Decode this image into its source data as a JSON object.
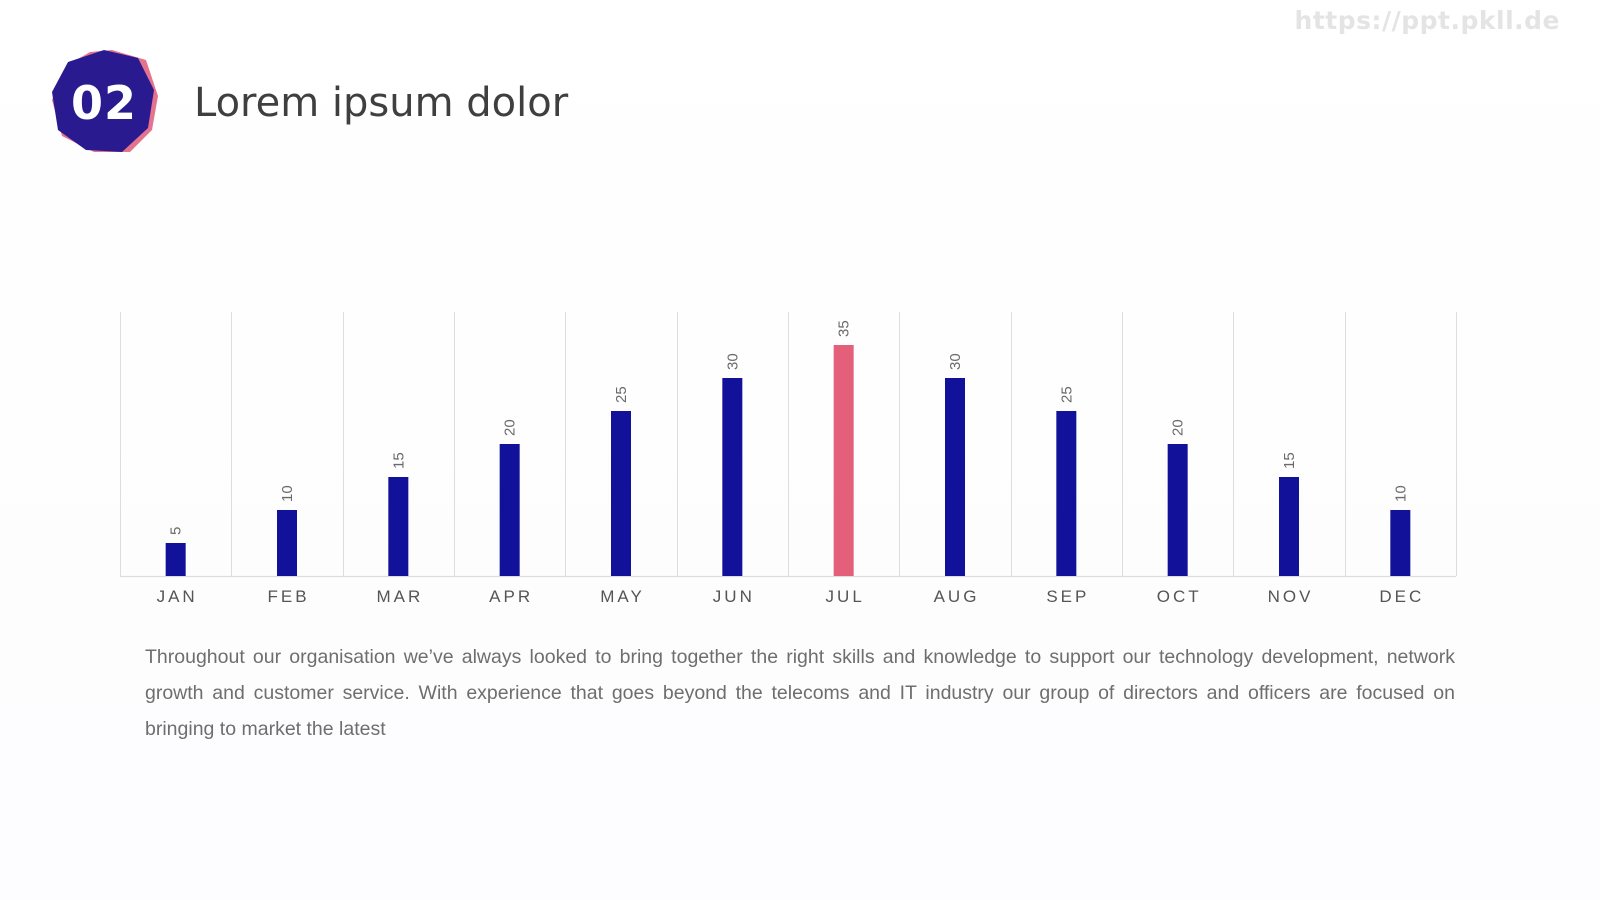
{
  "watermark": "https://ppt.pkll.de",
  "badge": {
    "number": "02"
  },
  "header": {
    "title": "Lorem ipsum dolor"
  },
  "colors": {
    "badge_primary": "#2a1a8f",
    "badge_accent": "#e05a7a",
    "bar_default": "#11119a",
    "bar_highlight": "#e4607a",
    "gridline": "#dddddd"
  },
  "chart_data": {
    "type": "bar",
    "title": "",
    "xlabel": "",
    "ylabel": "",
    "categories": [
      "JAN",
      "FEB",
      "MAR",
      "APR",
      "MAY",
      "JUN",
      "JUL",
      "AUG",
      "SEP",
      "OCT",
      "NOV",
      "DEC"
    ],
    "values": [
      5,
      10,
      15,
      20,
      25,
      30,
      35,
      30,
      25,
      20,
      15,
      10
    ],
    "highlight": "JUL",
    "ylim": [
      0,
      40
    ],
    "grid": "vertical separators between categories",
    "data_labels": "rotated above bars"
  },
  "description": "Throughout our organisation we’ve always looked to bring together the right skills and knowledge to support our technology development, network growth and customer service. With experience that goes beyond the telecoms and IT industry our group of directors and officers are focused on bringing to market the latest"
}
